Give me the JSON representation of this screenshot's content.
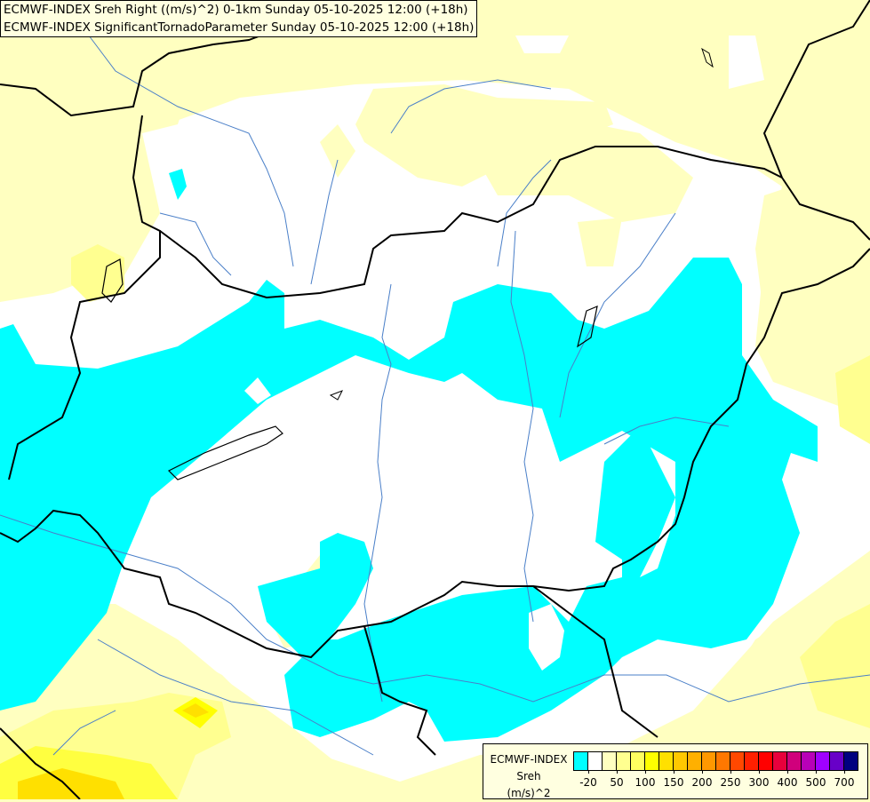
{
  "title": {
    "line1": "ECMWF-INDEX Sreh Right ((m/s)^2) 0-1km Sunday 05-10-2025 12:00 (+18h)",
    "line2": "ECMWF-INDEX SignificantTornadoParameter Sunday 05-10-2025 12:00 (+18h)"
  },
  "legend": {
    "title_line1": "ECMWF-INDEX",
    "title_line2": "Sreh",
    "title_line3": "(m/s)^2",
    "colors": [
      "#00ffff",
      "#ffffff",
      "#ffffc0",
      "#ffff90",
      "#ffff60",
      "#ffff00",
      "#ffe000",
      "#ffc800",
      "#ffb000",
      "#ff9800",
      "#ff7800",
      "#ff4800",
      "#ff2000",
      "#ff0000",
      "#e8003c",
      "#d0007c",
      "#b800b8",
      "#a000ff",
      "#6800c8",
      "#000080"
    ],
    "labels": [
      "-20",
      "50",
      "100",
      "150",
      "200",
      "250",
      "300",
      "400",
      "500",
      "700"
    ]
  },
  "map_colors": {
    "background": "#ffffc0",
    "negative_area": "#00ffff",
    "near_zero": "#ffffff",
    "border": "#000000",
    "river": "#4a7fc8"
  }
}
